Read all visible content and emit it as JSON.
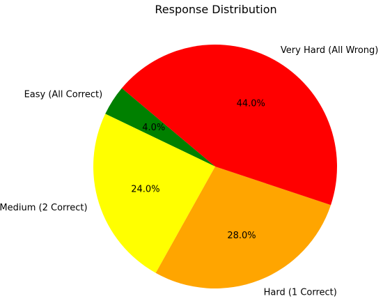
{
  "chart_data": {
    "type": "pie",
    "title": "Response Distribution",
    "slices": [
      {
        "label": "Easy (All Correct)",
        "value": 4.0,
        "pct_label": "4.0%",
        "color": "#008000"
      },
      {
        "label": "Medium (2 Correct)",
        "value": 24.0,
        "pct_label": "24.0%",
        "color": "#ffff00"
      },
      {
        "label": "Hard (1 Correct)",
        "value": 28.0,
        "pct_label": "28.0%",
        "color": "#ffa500"
      },
      {
        "label": "Very Hard (All Wrong)",
        "value": 44.0,
        "pct_label": "44.0%",
        "color": "#ff0000"
      }
    ],
    "start_angle_deg": 140,
    "direction": "counterclockwise",
    "legend": "none"
  }
}
